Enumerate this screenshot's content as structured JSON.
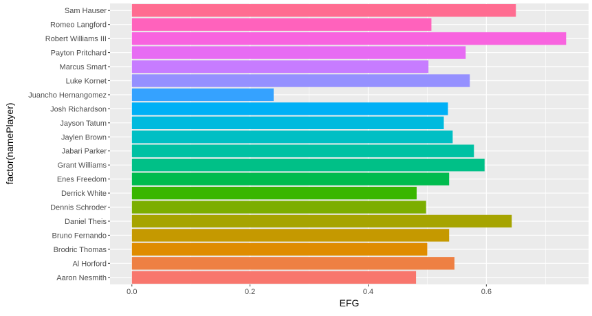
{
  "chart_data": {
    "type": "bar",
    "orientation": "horizontal",
    "xlabel": "EFG",
    "ylabel": "factor(namePlayer)",
    "xlim": [
      -0.037,
      0.773
    ],
    "x_ticks": [
      0.0,
      0.2,
      0.4,
      0.6
    ],
    "x_tick_labels": [
      "0.0",
      "0.2",
      "0.4",
      "0.6"
    ],
    "grid": true,
    "legend": "none",
    "panel_background": "#ebebeb",
    "grid_color": "#ffffff",
    "categories": [
      "Aaron Nesmith",
      "Al Horford",
      "Brodric Thomas",
      "Bruno Fernando",
      "Daniel Theis",
      "Dennis Schroder",
      "Derrick White",
      "Enes Freedom",
      "Grant Williams",
      "Jabari Parker",
      "Jaylen Brown",
      "Jayson Tatum",
      "Josh Richardson",
      "Juancho Hernangomez",
      "Luke Kornet",
      "Marcus Smart",
      "Payton Pritchard",
      "Robert Williams III",
      "Romeo Langford",
      "Sam Hauser"
    ],
    "values": [
      0.481,
      0.546,
      0.5,
      0.537,
      0.643,
      0.498,
      0.482,
      0.537,
      0.597,
      0.579,
      0.543,
      0.528,
      0.535,
      0.24,
      0.572,
      0.502,
      0.565,
      0.735,
      0.507,
      0.65
    ],
    "colors": [
      "#F8766D",
      "#EE8043",
      "#DF8C00",
      "#C59900",
      "#A6A400",
      "#7CAE00",
      "#39B600",
      "#00BB4E",
      "#00C087",
      "#00C1A3",
      "#00BFC4",
      "#00BADE",
      "#00B0F6",
      "#35A2FF",
      "#9590FF",
      "#C77CFF",
      "#E76BF3",
      "#F863DF",
      "#FF62BC",
      "#FF6C91"
    ]
  }
}
